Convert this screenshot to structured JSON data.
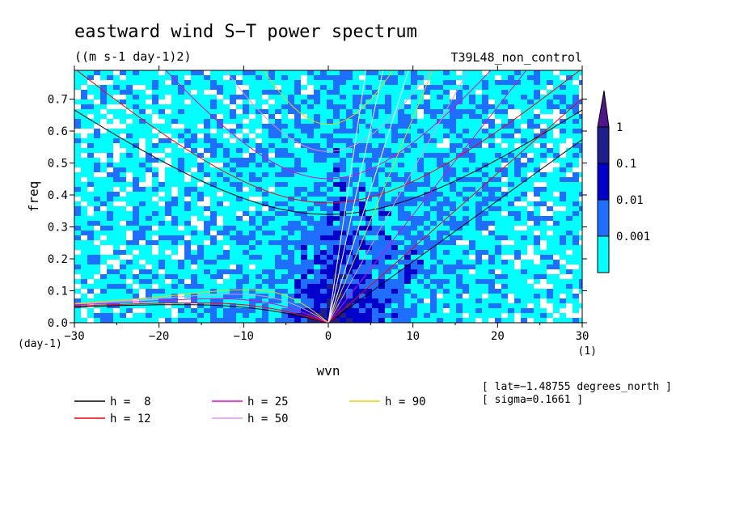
{
  "chart_data": {
    "type": "heatmap",
    "title": "eastward wind S−T power spectrum",
    "units": "((m s-1 day-1)2)",
    "run_label": "T39L48_non_control",
    "xlabel": "wvn",
    "ylabel": "freq",
    "x_unit_label": "(1)",
    "y_unit_label": "(day-1)",
    "xlim": [
      -30,
      30
    ],
    "ylim": [
      0,
      0.79
    ],
    "x_ticks": [
      -30,
      -20,
      -10,
      0,
      10,
      20,
      30
    ],
    "x_tick_labels": [
      "−30",
      "−20",
      "−10",
      "0",
      "10",
      "20",
      "30"
    ],
    "y_ticks": [
      0,
      0.1,
      0.2,
      0.3,
      0.4,
      0.5,
      0.6,
      0.7
    ],
    "y_tick_labels": [
      "0.0",
      "0.1",
      "0.2",
      "0.3",
      "0.4",
      "0.5",
      "0.6",
      "0.7"
    ],
    "color_scale": "log",
    "colorbar_levels": [
      "1",
      "0.1",
      "0.01",
      "0.001"
    ],
    "colorbar_colors": [
      "#1e1e8c",
      "#0000cc",
      "#1e6eff",
      "#00ffff"
    ],
    "colorbar_triangle_color": "#50148c",
    "low_color": "#ffffff",
    "dispersion_curves": [
      {
        "label": "h =  8",
        "h": 8,
        "color": "#000000"
      },
      {
        "label": "h = 12",
        "h": 12,
        "color": "#ff0000"
      },
      {
        "label": "h = 25",
        "h": 25,
        "color": "#ee00cc"
      },
      {
        "label": "h = 50",
        "h": 50,
        "color": "#dd99ee"
      },
      {
        "label": "h = 90",
        "h": 90,
        "color": "#e6d200"
      }
    ],
    "kelvin_lines_color": "#ffffff",
    "info_lat": "[ lat=−1.48755 degrees_north ]",
    "info_sigma": "[ sigma=0.1661 ]",
    "grid": false,
    "legend_position": "bottom"
  }
}
